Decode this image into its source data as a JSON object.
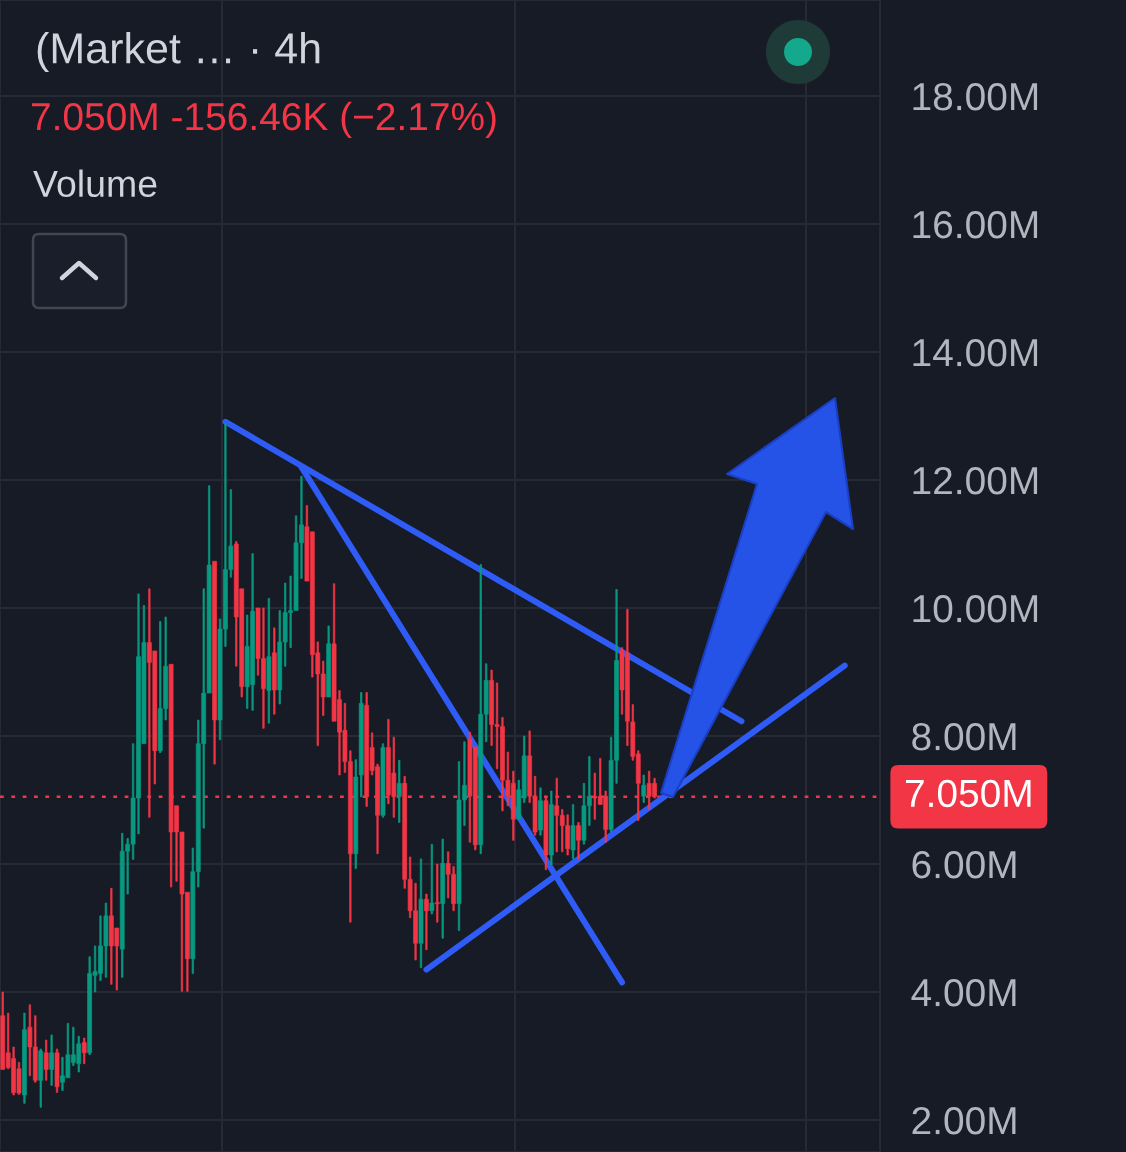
{
  "chart_data": {
    "type": "candlestick",
    "title": "(Market … · 4h",
    "subtitle": "7.050M -156.46K (−2.17%)",
    "annotations": [
      "Volume"
    ],
    "categories": [
      null,
      null,
      null,
      null,
      null,
      null,
      null,
      null,
      null,
      null,
      null,
      null,
      null,
      null,
      null,
      null,
      null,
      null,
      null,
      null,
      null,
      null,
      null,
      null,
      null,
      null,
      null,
      null,
      null,
      null,
      null,
      null,
      null,
      null,
      null,
      null,
      null,
      null,
      null,
      null,
      null,
      null,
      null,
      null,
      null,
      null,
      null,
      null,
      null,
      null,
      null,
      null,
      null,
      null,
      null,
      null,
      null,
      null,
      null,
      null,
      null,
      null,
      null,
      null,
      null,
      null,
      null,
      null,
      null,
      null,
      null,
      null,
      null,
      null,
      null,
      null,
      null,
      null,
      null,
      null,
      null,
      null,
      null,
      null,
      null,
      null,
      null,
      null,
      null,
      null,
      null,
      null,
      null,
      null,
      null,
      null,
      null,
      null,
      null,
      null,
      null,
      null,
      null,
      null,
      null,
      null,
      null,
      null,
      null,
      null,
      null,
      null,
      null,
      null,
      null,
      null,
      null,
      null,
      null,
      null,
      null,
      null,
      null,
      null,
      null,
      null,
      null,
      null,
      null,
      null,
      null,
      null,
      null,
      null,
      null,
      null,
      null,
      null,
      null,
      null,
      null,
      null,
      null,
      null,
      null,
      null,
      null,
      null,
      null,
      null,
      null,
      null,
      null,
      null,
      null,
      null,
      null,
      null,
      null,
      null,
      null,
      null
    ],
    "ohlc": [
      [
        3.63,
        4.0,
        2.79,
        2.79
      ],
      [
        3.05,
        3.67,
        2.8,
        2.82
      ],
      [
        2.96,
        3.14,
        2.39,
        2.43
      ],
      [
        2.8,
        2.9,
        2.4,
        2.42
      ],
      [
        2.39,
        3.67,
        2.26,
        3.41
      ],
      [
        3.45,
        3.8,
        2.69,
        3.14
      ],
      [
        3.14,
        3.63,
        2.59,
        2.62
      ],
      [
        2.62,
        3.11,
        2.2,
        3.08
      ],
      [
        3.05,
        3.25,
        2.62,
        2.79
      ],
      [
        2.79,
        3.33,
        2.54,
        3.05
      ],
      [
        3.05,
        3.11,
        2.43,
        2.52
      ],
      [
        2.59,
        2.98,
        2.46,
        2.69
      ],
      [
        2.66,
        3.51,
        2.66,
        3.02
      ],
      [
        2.9,
        3.45,
        2.85,
        3.02
      ],
      [
        2.88,
        3.31,
        2.75,
        3.19
      ],
      [
        3.21,
        3.28,
        2.88,
        3.05
      ],
      [
        3.05,
        4.55,
        3.02,
        4.29
      ],
      [
        4.26,
        4.72,
        4.0,
        4.32
      ],
      [
        4.29,
        5.19,
        4.18,
        4.72
      ],
      [
        4.72,
        5.39,
        4.23,
        5.19
      ],
      [
        5.19,
        5.62,
        4.12,
        4.72
      ],
      [
        5.0,
        5.0,
        4.03,
        4.72
      ],
      [
        4.67,
        6.48,
        4.23,
        6.2
      ],
      [
        6.2,
        6.4,
        5.53,
        6.31
      ],
      [
        6.31,
        7.88,
        6.07,
        7.03
      ],
      [
        7.03,
        10.22,
        6.47,
        9.24
      ],
      [
        7.88,
        10.04,
        7.88,
        9.46
      ],
      [
        9.46,
        10.3,
        6.73,
        9.15
      ],
      [
        9.33,
        9.33,
        7.25,
        7.77
      ],
      [
        7.77,
        9.79,
        7.74,
        8.43
      ],
      [
        8.43,
        9.86,
        8.25,
        9.09
      ],
      [
        9.12,
        9.12,
        5.64,
        6.5
      ],
      [
        6.91,
        6.91,
        5.73,
        6.5
      ],
      [
        6.5,
        6.5,
        4.01,
        5.53
      ],
      [
        5.56,
        5.56,
        4.01,
        4.52
      ],
      [
        4.52,
        6.25,
        4.29,
        5.88
      ],
      [
        5.88,
        8.25,
        5.64,
        7.88
      ],
      [
        7.88,
        10.3,
        6.56,
        8.67
      ],
      [
        8.67,
        11.91,
        8.67,
        10.67
      ],
      [
        10.73,
        10.73,
        7.56,
        8.25
      ],
      [
        8.25,
        9.83,
        7.94,
        9.67
      ],
      [
        9.67,
        12.88,
        9.4,
        10.6
      ],
      [
        10.6,
        11.85,
        10.48,
        10.97
      ],
      [
        11.0,
        11.04,
        9.09,
        9.86
      ],
      [
        10.3,
        10.3,
        8.61,
        8.77
      ],
      [
        8.77,
        9.89,
        8.43,
        9.4
      ],
      [
        8.8,
        10.85,
        8.4,
        9.95
      ],
      [
        10.0,
        10.0,
        8.95,
        9.21
      ],
      [
        9.21,
        10.0,
        8.12,
        8.74
      ],
      [
        8.71,
        10.15,
        8.2,
        9.24
      ],
      [
        9.3,
        9.69,
        8.34,
        8.72
      ],
      [
        8.72,
        9.96,
        8.5,
        9.47
      ],
      [
        9.47,
        10.39,
        9.09,
        9.93
      ],
      [
        9.93,
        10.5,
        9.38,
        9.96
      ],
      [
        9.96,
        11.44,
        9.96,
        11.02
      ],
      [
        11.02,
        12.06,
        10.46,
        11.3
      ],
      [
        11.27,
        11.6,
        10.42,
        10.42
      ],
      [
        11.19,
        11.19,
        8.92,
        9.27
      ],
      [
        9.3,
        9.47,
        7.85,
        8.97
      ],
      [
        8.97,
        9.17,
        8.32,
        8.61
      ],
      [
        8.61,
        9.72,
        8.61,
        9.44
      ],
      [
        9.44,
        10.38,
        8.23,
        8.23
      ],
      [
        8.57,
        8.71,
        7.39,
        8.06
      ],
      [
        8.09,
        8.51,
        7.43,
        7.6
      ],
      [
        7.6,
        7.77,
        5.09,
        6.16
      ],
      [
        6.16,
        7.63,
        5.93,
        7.36
      ],
      [
        7.39,
        8.68,
        7.05,
        8.51
      ],
      [
        8.48,
        8.68,
        6.9,
        7.05
      ],
      [
        7.82,
        8.05,
        7.39,
        7.46
      ],
      [
        7.52,
        7.56,
        6.16,
        6.76
      ],
      [
        6.76,
        7.88,
        6.73,
        7.82
      ],
      [
        7.82,
        8.26,
        6.94,
        7.08
      ],
      [
        7.42,
        7.98,
        6.73,
        7.05
      ],
      [
        7.06,
        7.62,
        6.65,
        7.26
      ],
      [
        7.26,
        7.37,
        5.62,
        5.76
      ],
      [
        5.76,
        6.11,
        5.16,
        5.27
      ],
      [
        5.27,
        5.7,
        4.5,
        4.76
      ],
      [
        4.76,
        6.08,
        4.38,
        5.45
      ],
      [
        5.45,
        5.53,
        4.66,
        5.27
      ],
      [
        5.27,
        6.31,
        5.22,
        5.39
      ],
      [
        5.4,
        6.0,
        5.09,
        5.38
      ],
      [
        5.38,
        6.39,
        4.84,
        6.01
      ],
      [
        6.01,
        6.19,
        5.47,
        5.84
      ],
      [
        5.84,
        5.96,
        5.27,
        5.38
      ],
      [
        5.38,
        7.6,
        4.96,
        7.0
      ],
      [
        7.0,
        7.91,
        6.6,
        7.23
      ],
      [
        7.95,
        8.06,
        6.34,
        7.06
      ],
      [
        7.83,
        7.83,
        6.22,
        6.3
      ],
      [
        6.3,
        10.68,
        6.16,
        8.34
      ],
      [
        8.34,
        9.13,
        7.91,
        8.87
      ],
      [
        8.87,
        9.03,
        7.85,
        8.18
      ],
      [
        8.18,
        8.83,
        7.49,
        8.15
      ],
      [
        8.15,
        8.29,
        6.83,
        7.31
      ],
      [
        7.31,
        7.75,
        6.91,
        7.06
      ],
      [
        7.26,
        7.45,
        6.37,
        6.7
      ],
      [
        6.7,
        7.31,
        6.7,
        7.16
      ],
      [
        7.03,
        8.0,
        6.96,
        7.69
      ],
      [
        7.69,
        8.08,
        6.96,
        7.06
      ],
      [
        7.06,
        7.37,
        6.45,
        6.5
      ],
      [
        6.53,
        7.19,
        6.45,
        6.99
      ],
      [
        6.99,
        7.06,
        5.91,
        6.14
      ],
      [
        6.14,
        7.14,
        5.99,
        6.93
      ],
      [
        6.91,
        7.34,
        6.19,
        6.76
      ],
      [
        6.76,
        6.85,
        6.19,
        6.6
      ],
      [
        6.6,
        6.77,
        6.14,
        6.24
      ],
      [
        6.22,
        6.93,
        6.08,
        6.6
      ],
      [
        6.6,
        6.65,
        6.08,
        6.37
      ],
      [
        6.37,
        7.26,
        6.31,
        6.91
      ],
      [
        6.91,
        7.68,
        6.6,
        7.06
      ],
      [
        7.06,
        7.42,
        6.7,
        7.03
      ],
      [
        7.06,
        7.65,
        6.93,
        6.93
      ],
      [
        7.06,
        7.14,
        6.34,
        6.54
      ],
      [
        6.54,
        7.98,
        6.5,
        7.62
      ],
      [
        7.62,
        10.29,
        7.26,
        9.18
      ],
      [
        9.34,
        9.38,
        8.34,
        8.72
      ],
      [
        9.3,
        9.98,
        7.85,
        8.23
      ],
      [
        8.22,
        8.49,
        7.62,
        7.68
      ],
      [
        7.72,
        7.77,
        6.68,
        7.26
      ],
      [
        7.06,
        7.39,
        6.96,
        7.23
      ],
      [
        7.26,
        7.45,
        6.85,
        7.06
      ],
      [
        7.26,
        7.34,
        7.03,
        7.05
      ],
      null,
      null,
      null,
      null,
      null,
      null,
      null,
      null,
      null,
      null,
      null,
      null,
      null,
      null,
      null,
      null,
      null,
      null,
      null,
      null,
      null,
      null,
      null,
      null,
      null,
      null,
      null,
      null,
      null,
      null,
      null,
      null,
      null,
      null,
      null,
      null,
      null,
      null,
      null,
      null,
      null
    ],
    "colors": [
      "#f23645",
      "#f23645",
      "#f23645",
      "#f23645",
      "#089981",
      "#f23645",
      "#f23645",
      "#089981",
      "#f23645",
      "#089981",
      "#f23645",
      "#089981",
      "#089981",
      "#089981",
      "#089981",
      "#f23645",
      "#089981",
      "#089981",
      "#089981",
      "#089981",
      "#f23645",
      "#f23645",
      "#089981",
      "#089981",
      "#089981",
      "#089981",
      "#089981",
      "#f23645",
      "#f23645",
      "#089981",
      "#089981",
      "#f23645",
      "#f23645",
      "#f23645",
      "#f23645",
      "#089981",
      "#089981",
      "#089981",
      "#089981",
      "#f23645",
      "#089981",
      "#089981",
      "#089981",
      "#f23645",
      "#f23645",
      "#089981",
      "#089981",
      "#f23645",
      "#f23645",
      "#089981",
      "#f23645",
      "#089981",
      "#089981",
      "#089981",
      "#089981",
      "#089981",
      "#f23645",
      "#f23645",
      "#f23645",
      "#f23645",
      "#089981",
      "#f23645",
      "#f23645",
      "#f23645",
      "#f23645",
      "#089981",
      "#089981",
      "#f23645",
      "#f23645",
      "#f23645",
      "#089981",
      "#f23645",
      "#f23645",
      "#089981",
      "#f23645",
      "#f23645",
      "#f23645",
      "#089981",
      "#f23645",
      "#089981",
      "#f23645",
      "#089981",
      "#f23645",
      "#f23645",
      "#089981",
      "#089981",
      "#f23645",
      "#f23645",
      "#089981",
      "#089981",
      "#f23645",
      "#f23645",
      "#f23645",
      "#f23645",
      "#f23645",
      "#089981",
      "#089981",
      "#f23645",
      "#f23645",
      "#089981",
      "#f23645",
      "#089981",
      "#f23645",
      "#f23645",
      "#f23645",
      "#089981",
      "#f23645",
      "#089981",
      "#089981",
      "#f23645",
      "#f23645",
      "#f23645",
      "#089981",
      "#089981",
      "#f23645",
      "#f23645",
      "#f23645",
      "#f23645",
      "#089981",
      "#f23645",
      "#f23645",
      null,
      null,
      null,
      null,
      null,
      null,
      null,
      null,
      null,
      null,
      null,
      null,
      null,
      null,
      null,
      null,
      null,
      null,
      null,
      null,
      null,
      null,
      null,
      null,
      null,
      null,
      null,
      null,
      null,
      null,
      null,
      null,
      null,
      null,
      null,
      null,
      null,
      null,
      null,
      null,
      null
    ],
    "series": [
      {
        "type": "line",
        "color": "#2f5cf6",
        "values": [
          null,
          null,
          null,
          null,
          null,
          null,
          null,
          null,
          null,
          null,
          null,
          null,
          null,
          null,
          null,
          null,
          null,
          null,
          null,
          null,
          null,
          null,
          null,
          null,
          null,
          null,
          null,
          null,
          null,
          null,
          null,
          null,
          null,
          null,
          null,
          null,
          null,
          null,
          null,
          null,
          null,
          12.91,
          null,
          null,
          null,
          null,
          null,
          null,
          null,
          null,
          null,
          null,
          null,
          null,
          null,
          null,
          null,
          null,
          null,
          null,
          null,
          null,
          null,
          null,
          null,
          null,
          null,
          null,
          null,
          null,
          null,
          null,
          null,
          null,
          null,
          null,
          null,
          null,
          null,
          null,
          null,
          null,
          null,
          null,
          null,
          null,
          null,
          null,
          null,
          null,
          null,
          null,
          null,
          null,
          null,
          null,
          null,
          null,
          null,
          null,
          null,
          null,
          null,
          null,
          null,
          null,
          null,
          null,
          null,
          null,
          null,
          null,
          null,
          null,
          null,
          null,
          null,
          null,
          null,
          null,
          null,
          null,
          null,
          null,
          null,
          null,
          null,
          null,
          null,
          null,
          null,
          null,
          null,
          null,
          null,
          null,
          8.23,
          null,
          null,
          null,
          null,
          null,
          null,
          null,
          null,
          null,
          null,
          null,
          null,
          null,
          null,
          null,
          null,
          null,
          null,
          null,
          null,
          null,
          null,
          null,
          null,
          null
        ]
      },
      {
        "type": "line",
        "color": "#2f5cf6",
        "values": [
          null,
          null,
          null,
          null,
          null,
          null,
          null,
          null,
          null,
          null,
          null,
          null,
          null,
          null,
          null,
          null,
          null,
          null,
          null,
          null,
          null,
          null,
          null,
          null,
          null,
          null,
          null,
          null,
          null,
          null,
          null,
          null,
          null,
          null,
          null,
          null,
          null,
          null,
          null,
          null,
          null,
          null,
          null,
          null,
          null,
          null,
          null,
          null,
          null,
          null,
          null,
          null,
          null,
          null,
          null,
          12.2,
          null,
          null,
          null,
          null,
          null,
          null,
          null,
          null,
          null,
          null,
          null,
          null,
          null,
          null,
          null,
          null,
          null,
          null,
          null,
          null,
          null,
          null,
          null,
          null,
          null,
          null,
          null,
          null,
          null,
          null,
          null,
          null,
          null,
          null,
          null,
          null,
          null,
          null,
          null,
          null,
          null,
          null,
          null,
          null,
          null,
          null,
          null,
          null,
          null,
          null,
          null,
          null,
          null,
          null,
          null,
          null,
          null,
          null,
          4.15,
          null,
          null,
          null,
          null,
          null,
          null,
          null,
          null,
          null,
          null,
          null,
          null,
          null,
          null,
          null,
          null,
          null,
          null,
          null,
          null,
          null,
          null,
          null,
          null,
          null,
          null,
          null,
          null,
          null,
          null,
          null,
          null,
          null,
          null,
          null,
          null,
          null,
          null,
          null,
          null,
          null,
          null,
          null,
          null,
          null,
          null,
          null
        ]
      },
      {
        "type": "line",
        "color": "#2f5cf6",
        "values": [
          null,
          null,
          null,
          null,
          null,
          null,
          null,
          null,
          null,
          null,
          null,
          null,
          null,
          null,
          null,
          null,
          null,
          null,
          null,
          null,
          null,
          null,
          null,
          null,
          null,
          null,
          null,
          null,
          null,
          null,
          null,
          null,
          null,
          null,
          null,
          null,
          null,
          null,
          null,
          null,
          null,
          null,
          null,
          null,
          null,
          null,
          null,
          null,
          null,
          null,
          null,
          null,
          null,
          null,
          null,
          null,
          null,
          null,
          null,
          null,
          null,
          null,
          null,
          null,
          null,
          null,
          null,
          null,
          null,
          null,
          null,
          null,
          null,
          null,
          null,
          null,
          null,
          null,
          4.35,
          null,
          null,
          null,
          null,
          null,
          null,
          null,
          null,
          null,
          null,
          null,
          null,
          null,
          null,
          null,
          null,
          null,
          null,
          null,
          null,
          null,
          null,
          null,
          null,
          null,
          null,
          null,
          null,
          null,
          null,
          null,
          null,
          null,
          null,
          null,
          null,
          null,
          null,
          null,
          null,
          null,
          null,
          null,
          null,
          null,
          null,
          null,
          null,
          null,
          null,
          null,
          null,
          null,
          null,
          null,
          null,
          null,
          null,
          null,
          null,
          null,
          null,
          null,
          null,
          null,
          null,
          null,
          null,
          null,
          null,
          null,
          null,
          null,
          null,
          null,
          null,
          9.1,
          null,
          null,
          null,
          null,
          null,
          null
        ]
      }
    ],
    "ylim": [
      1.5,
      19.5
    ],
    "yticks": [
      {
        "value": 2,
        "label": "2.00M"
      },
      {
        "value": 4,
        "label": "4.00M"
      },
      {
        "value": 6,
        "label": "6.00M"
      },
      {
        "value": 8,
        "label": "8.00M"
      },
      {
        "value": 10,
        "label": "10.00M"
      },
      {
        "value": 12,
        "label": "12.00M"
      },
      {
        "value": 14,
        "label": "14.00M"
      },
      {
        "value": 16,
        "label": "16.00M"
      },
      {
        "value": 18,
        "label": "18.00M"
      }
    ],
    "ref_lines": [
      {
        "axis": "y",
        "value": 7.05,
        "label": "7.050M",
        "color": "#f23645",
        "line_style": "dotted"
      }
    ],
    "grid": true,
    "tick_labels": "y"
  }
}
